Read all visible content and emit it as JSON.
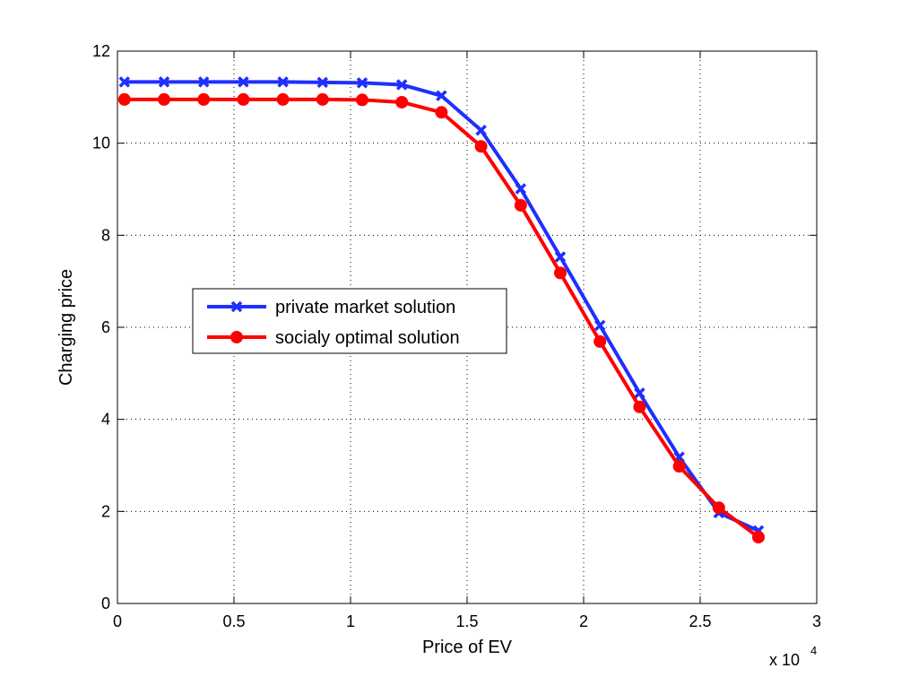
{
  "chart_data": {
    "type": "line",
    "xlabel": "Price of EV",
    "ylabel": "Charging price",
    "x_multiplier_text": "x 10",
    "x_multiplier_exp": "4",
    "xlim": [
      0,
      3
    ],
    "ylim": [
      0,
      12
    ],
    "xticks": [
      "0",
      "0.5",
      "1",
      "1.5",
      "2",
      "2.5",
      "3"
    ],
    "xtick_values": [
      0,
      0.5,
      1,
      1.5,
      2,
      2.5,
      3
    ],
    "yticks": [
      "0",
      "2",
      "4",
      "6",
      "8",
      "10",
      "12"
    ],
    "ytick_values": [
      0,
      2,
      4,
      6,
      8,
      10,
      12
    ],
    "grid": true,
    "legend_position": "center-left",
    "x": [
      0.03,
      0.2,
      0.37,
      0.54,
      0.71,
      0.88,
      1.05,
      1.22,
      1.39,
      1.56,
      1.73,
      1.9,
      2.07,
      2.24,
      2.41,
      2.58,
      2.75
    ],
    "series": [
      {
        "name": "private market solution",
        "color": "#1f2fff",
        "marker": "x",
        "values": [
          11.33,
          11.33,
          11.33,
          11.33,
          11.33,
          11.32,
          11.31,
          11.27,
          11.03,
          10.28,
          9.01,
          7.53,
          6.04,
          4.57,
          3.18,
          1.97,
          1.58
        ]
      },
      {
        "name": "socialy optimal solution",
        "color": "#ff0000",
        "marker": "o",
        "values": [
          10.95,
          10.95,
          10.95,
          10.95,
          10.95,
          10.95,
          10.94,
          10.89,
          10.67,
          9.93,
          8.65,
          7.18,
          5.69,
          4.27,
          2.98,
          2.08,
          1.44
        ]
      }
    ]
  }
}
